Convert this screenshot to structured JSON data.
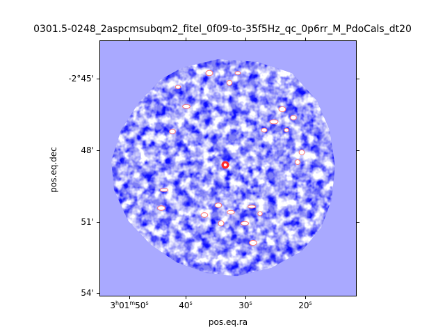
{
  "title": "0301.5-0248_2aspcmsubqm2_fitel_0f09-to-35f5Hz_qc_0p6rr_M_PdoCals_dt20",
  "axes": {
    "xlabel": "pos.eq.ra",
    "ylabel": "pos.eq.dec",
    "x_ticks": [
      {
        "label_h": "3",
        "label_m": "01",
        "label_s": "50"
      },
      {
        "label_s": "40"
      },
      {
        "label_s": "30"
      },
      {
        "label_s": "20"
      }
    ],
    "y_ticks": [
      "-2°45'",
      "48'",
      "51'",
      "54'"
    ]
  },
  "colors": {
    "background": "#a9a9ff",
    "low": "#0000ff",
    "mid": "#ffffff",
    "high": "#ff0000"
  }
}
